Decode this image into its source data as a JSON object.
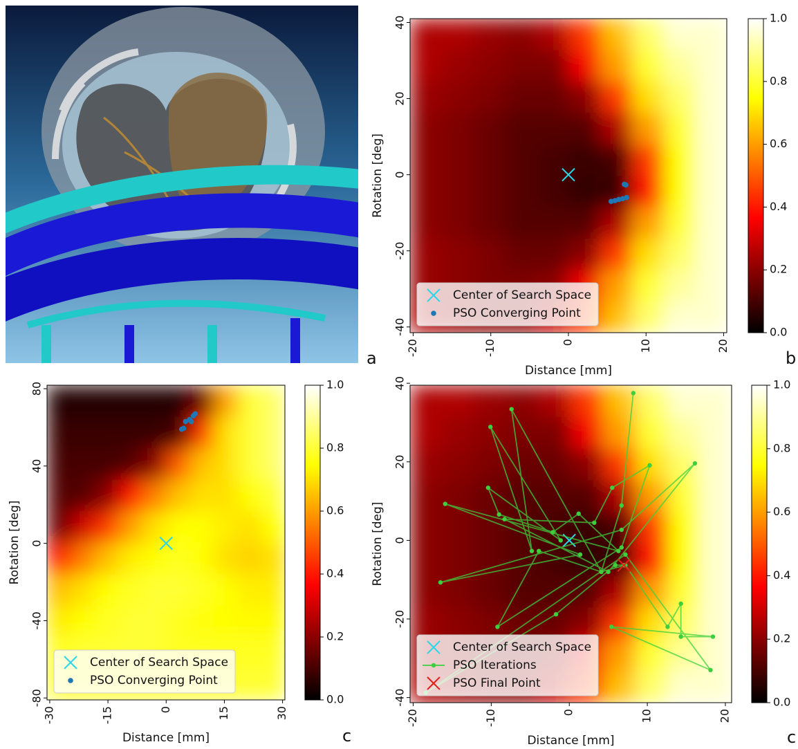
{
  "panel_labels": [
    "a",
    "b",
    "c",
    "c"
  ],
  "chart_data": [
    {
      "type": "heatmap",
      "x_label": "Distance [mm]",
      "y_label": "Rotation [deg]",
      "colormap": "hot",
      "xlim": [
        -20.4,
        20.4
      ],
      "ylim": [
        -41.5,
        41
      ],
      "xticks": [
        -20,
        -10,
        0,
        10,
        20
      ],
      "yticks": [
        -40,
        -20,
        0,
        20,
        40
      ],
      "zlim": [
        0,
        1
      ],
      "cticks": [
        {
          "value": 0,
          "label": "0.0"
        },
        0.2,
        0.4,
        0.6,
        0.8,
        {
          "value": 1,
          "label": "1.0"
        }
      ],
      "legend": "lower left",
      "z": [
        [
          0.25,
          0.25,
          0.22,
          0.2,
          0.25,
          0.45,
          0.65,
          0.85,
          0.95,
          0.95
        ],
        [
          0.25,
          0.22,
          0.2,
          0.18,
          0.18,
          0.35,
          0.6,
          0.8,
          0.9,
          0.95
        ],
        [
          0.22,
          0.2,
          0.18,
          0.15,
          0.15,
          0.2,
          0.45,
          0.7,
          0.85,
          0.95
        ],
        [
          0.2,
          0.18,
          0.15,
          0.12,
          0.12,
          0.12,
          0.25,
          0.6,
          0.8,
          0.95
        ],
        [
          0.2,
          0.18,
          0.15,
          0.12,
          0.1,
          0.08,
          0.1,
          0.45,
          0.75,
          0.95
        ],
        [
          0.2,
          0.18,
          0.15,
          0.12,
          0.1,
          0.07,
          0.08,
          0.4,
          0.75,
          0.95
        ],
        [
          0.2,
          0.18,
          0.15,
          0.12,
          0.12,
          0.12,
          0.25,
          0.6,
          0.8,
          0.95
        ],
        [
          0.22,
          0.2,
          0.18,
          0.15,
          0.15,
          0.2,
          0.45,
          0.7,
          0.85,
          0.95
        ],
        [
          0.22,
          0.2,
          0.18,
          0.18,
          0.2,
          0.35,
          0.6,
          0.8,
          0.9,
          0.95
        ],
        [
          0.25,
          0.22,
          0.2,
          0.2,
          0.28,
          0.45,
          0.65,
          0.85,
          0.95,
          0.95
        ]
      ],
      "series": [
        {
          "name": "Center of Search Space",
          "marker": "x",
          "color": "#2ad6e8",
          "x": [
            0
          ],
          "y": [
            0
          ]
        },
        {
          "name": "PSO Converging Point",
          "marker": "dot",
          "color": "#1f77b4",
          "x": [
            7.2,
            7.4,
            5.5,
            6,
            6.5,
            7,
            7.5
          ],
          "y": [
            -2.5,
            -2.7,
            -7,
            -6.8,
            -6.5,
            -6.3,
            -6
          ]
        }
      ]
    },
    {
      "type": "heatmap",
      "x_label": "Distance [mm]",
      "y_label": "Rotation [deg]",
      "colormap": "hot",
      "xlim": [
        -30.7,
        30.6
      ],
      "ylim": [
        -81,
        81.8
      ],
      "xticks": [
        -30,
        -15,
        0,
        15,
        30
      ],
      "yticks": [
        -80,
        -40,
        0,
        40,
        80
      ],
      "zlim": [
        0,
        1
      ],
      "cticks": [
        {
          "value": 0,
          "label": "0.0"
        },
        0.2,
        0.4,
        0.6,
        0.8,
        {
          "value": 1,
          "label": "1.0"
        }
      ],
      "legend": "lower left",
      "z": [
        [
          0.05,
          0.05,
          0.05,
          0.05,
          0.05,
          0.05,
          0.15,
          0.6,
          0.8,
          0.85
        ],
        [
          0.08,
          0.08,
          0.08,
          0.08,
          0.08,
          0.1,
          0.45,
          0.7,
          0.8,
          0.85
        ],
        [
          0.1,
          0.1,
          0.1,
          0.12,
          0.2,
          0.5,
          0.65,
          0.7,
          0.8,
          0.85
        ],
        [
          0.12,
          0.12,
          0.2,
          0.4,
          0.55,
          0.65,
          0.7,
          0.7,
          0.75,
          0.8
        ],
        [
          0.15,
          0.3,
          0.45,
          0.6,
          0.7,
          0.75,
          0.75,
          0.72,
          0.7,
          0.75
        ],
        [
          0.4,
          0.55,
          0.65,
          0.72,
          0.75,
          0.78,
          0.75,
          0.7,
          0.68,
          0.7
        ],
        [
          0.65,
          0.7,
          0.75,
          0.78,
          0.8,
          0.8,
          0.78,
          0.75,
          0.72,
          0.72
        ],
        [
          0.72,
          0.75,
          0.78,
          0.8,
          0.8,
          0.78,
          0.76,
          0.75,
          0.74,
          0.74
        ],
        [
          0.78,
          0.8,
          0.8,
          0.8,
          0.8,
          0.78,
          0.78,
          0.78,
          0.78,
          0.78
        ],
        [
          0.8,
          0.8,
          0.8,
          0.8,
          0.8,
          0.8,
          0.8,
          0.8,
          0.8,
          0.8
        ]
      ],
      "series": [
        {
          "name": "Center of Search Space",
          "marker": "x",
          "color": "#2ad6e8",
          "x": [
            0
          ],
          "y": [
            0
          ]
        },
        {
          "name": "PSO Converging Point",
          "marker": "dot",
          "color": "#1f77b4",
          "x": [
            4,
            5,
            6,
            7,
            7.5,
            4.5,
            6.5
          ],
          "y": [
            59,
            63,
            64,
            66,
            67,
            59.5,
            63
          ]
        }
      ]
    },
    {
      "type": "heatmap",
      "x_label": "Distance [mm]",
      "y_label": "Rotation [deg]",
      "colormap": "hot",
      "xlim": [
        -20.4,
        20.8
      ],
      "ylim": [
        -41.3,
        39.5
      ],
      "xticks": [
        -20,
        -10,
        0,
        10,
        20
      ],
      "yticks": [
        -40,
        -20,
        0,
        20,
        40
      ],
      "zlim": [
        0,
        1
      ],
      "cticks": [
        {
          "value": 0,
          "label": "0.0"
        },
        0.2,
        0.4,
        0.6,
        0.8,
        {
          "value": 1,
          "label": "1.0"
        }
      ],
      "legend": "lower left",
      "z": [
        [
          0.25,
          0.25,
          0.22,
          0.2,
          0.25,
          0.45,
          0.65,
          0.85,
          0.95,
          0.95
        ],
        [
          0.25,
          0.22,
          0.2,
          0.18,
          0.18,
          0.35,
          0.6,
          0.8,
          0.9,
          0.95
        ],
        [
          0.22,
          0.2,
          0.18,
          0.15,
          0.15,
          0.2,
          0.45,
          0.7,
          0.85,
          0.95
        ],
        [
          0.2,
          0.18,
          0.15,
          0.12,
          0.12,
          0.12,
          0.25,
          0.6,
          0.8,
          0.95
        ],
        [
          0.2,
          0.18,
          0.15,
          0.12,
          0.1,
          0.08,
          0.1,
          0.45,
          0.75,
          0.95
        ],
        [
          0.2,
          0.18,
          0.15,
          0.12,
          0.1,
          0.07,
          0.08,
          0.4,
          0.75,
          0.95
        ],
        [
          0.2,
          0.18,
          0.15,
          0.12,
          0.12,
          0.12,
          0.25,
          0.6,
          0.8,
          0.95
        ],
        [
          0.22,
          0.2,
          0.18,
          0.15,
          0.15,
          0.2,
          0.45,
          0.7,
          0.85,
          0.95
        ],
        [
          0.22,
          0.2,
          0.18,
          0.18,
          0.2,
          0.35,
          0.6,
          0.8,
          0.9,
          0.95
        ],
        [
          0.25,
          0.22,
          0.2,
          0.2,
          0.28,
          0.45,
          0.65,
          0.85,
          0.95,
          0.95
        ]
      ],
      "series": [
        {
          "name": "Center of Search Space",
          "marker": "x",
          "color": "#2ad6e8",
          "x": [
            0
          ],
          "y": [
            0
          ]
        },
        {
          "name": "PSO Iterations",
          "marker": "line-dot",
          "color": "#3ecf3e",
          "x": [
            8.2,
            6.7,
            4.1,
            -7.4,
            -4.8,
            -10.1,
            -1.1,
            -10.4,
            -9.0,
            -2.1,
            1.2,
            6.3,
            -15.9,
            1.4,
            -16.5,
            6.7,
            16.1,
            5.0,
            -8.3,
            3.2,
            5.5,
            10.3,
            6.7,
            -9.2,
            -3.9,
            4.1,
            7.2,
            12.6,
            14.3,
            14.3,
            18.4,
            5.4,
            18.1,
            7.2,
            -18.4,
            -1.7,
            5.9,
            7.0
          ],
          "y": [
            37.5,
            8.9,
            -8.0,
            33.4,
            -2.7,
            28.9,
            0,
            13.4,
            6.6,
            2.1,
            6.8,
            -2.7,
            9.3,
            -3.6,
            -10.7,
            2.7,
            19.6,
            -8.0,
            5.4,
            4.5,
            13.4,
            19.1,
            -1.8,
            -22.0,
            -2.7,
            -8.0,
            -6.3,
            -22.0,
            -16.1,
            -24.5,
            -24.5,
            -22.0,
            -33.0,
            -3.6,
            -38.8,
            -18.8,
            -6.3,
            -6.3
          ]
        },
        {
          "name": "PSO Final Point",
          "marker": "x",
          "color": "#e0201a",
          "x": [
            7.0
          ],
          "y": [
            -6.3
          ]
        }
      ]
    }
  ]
}
